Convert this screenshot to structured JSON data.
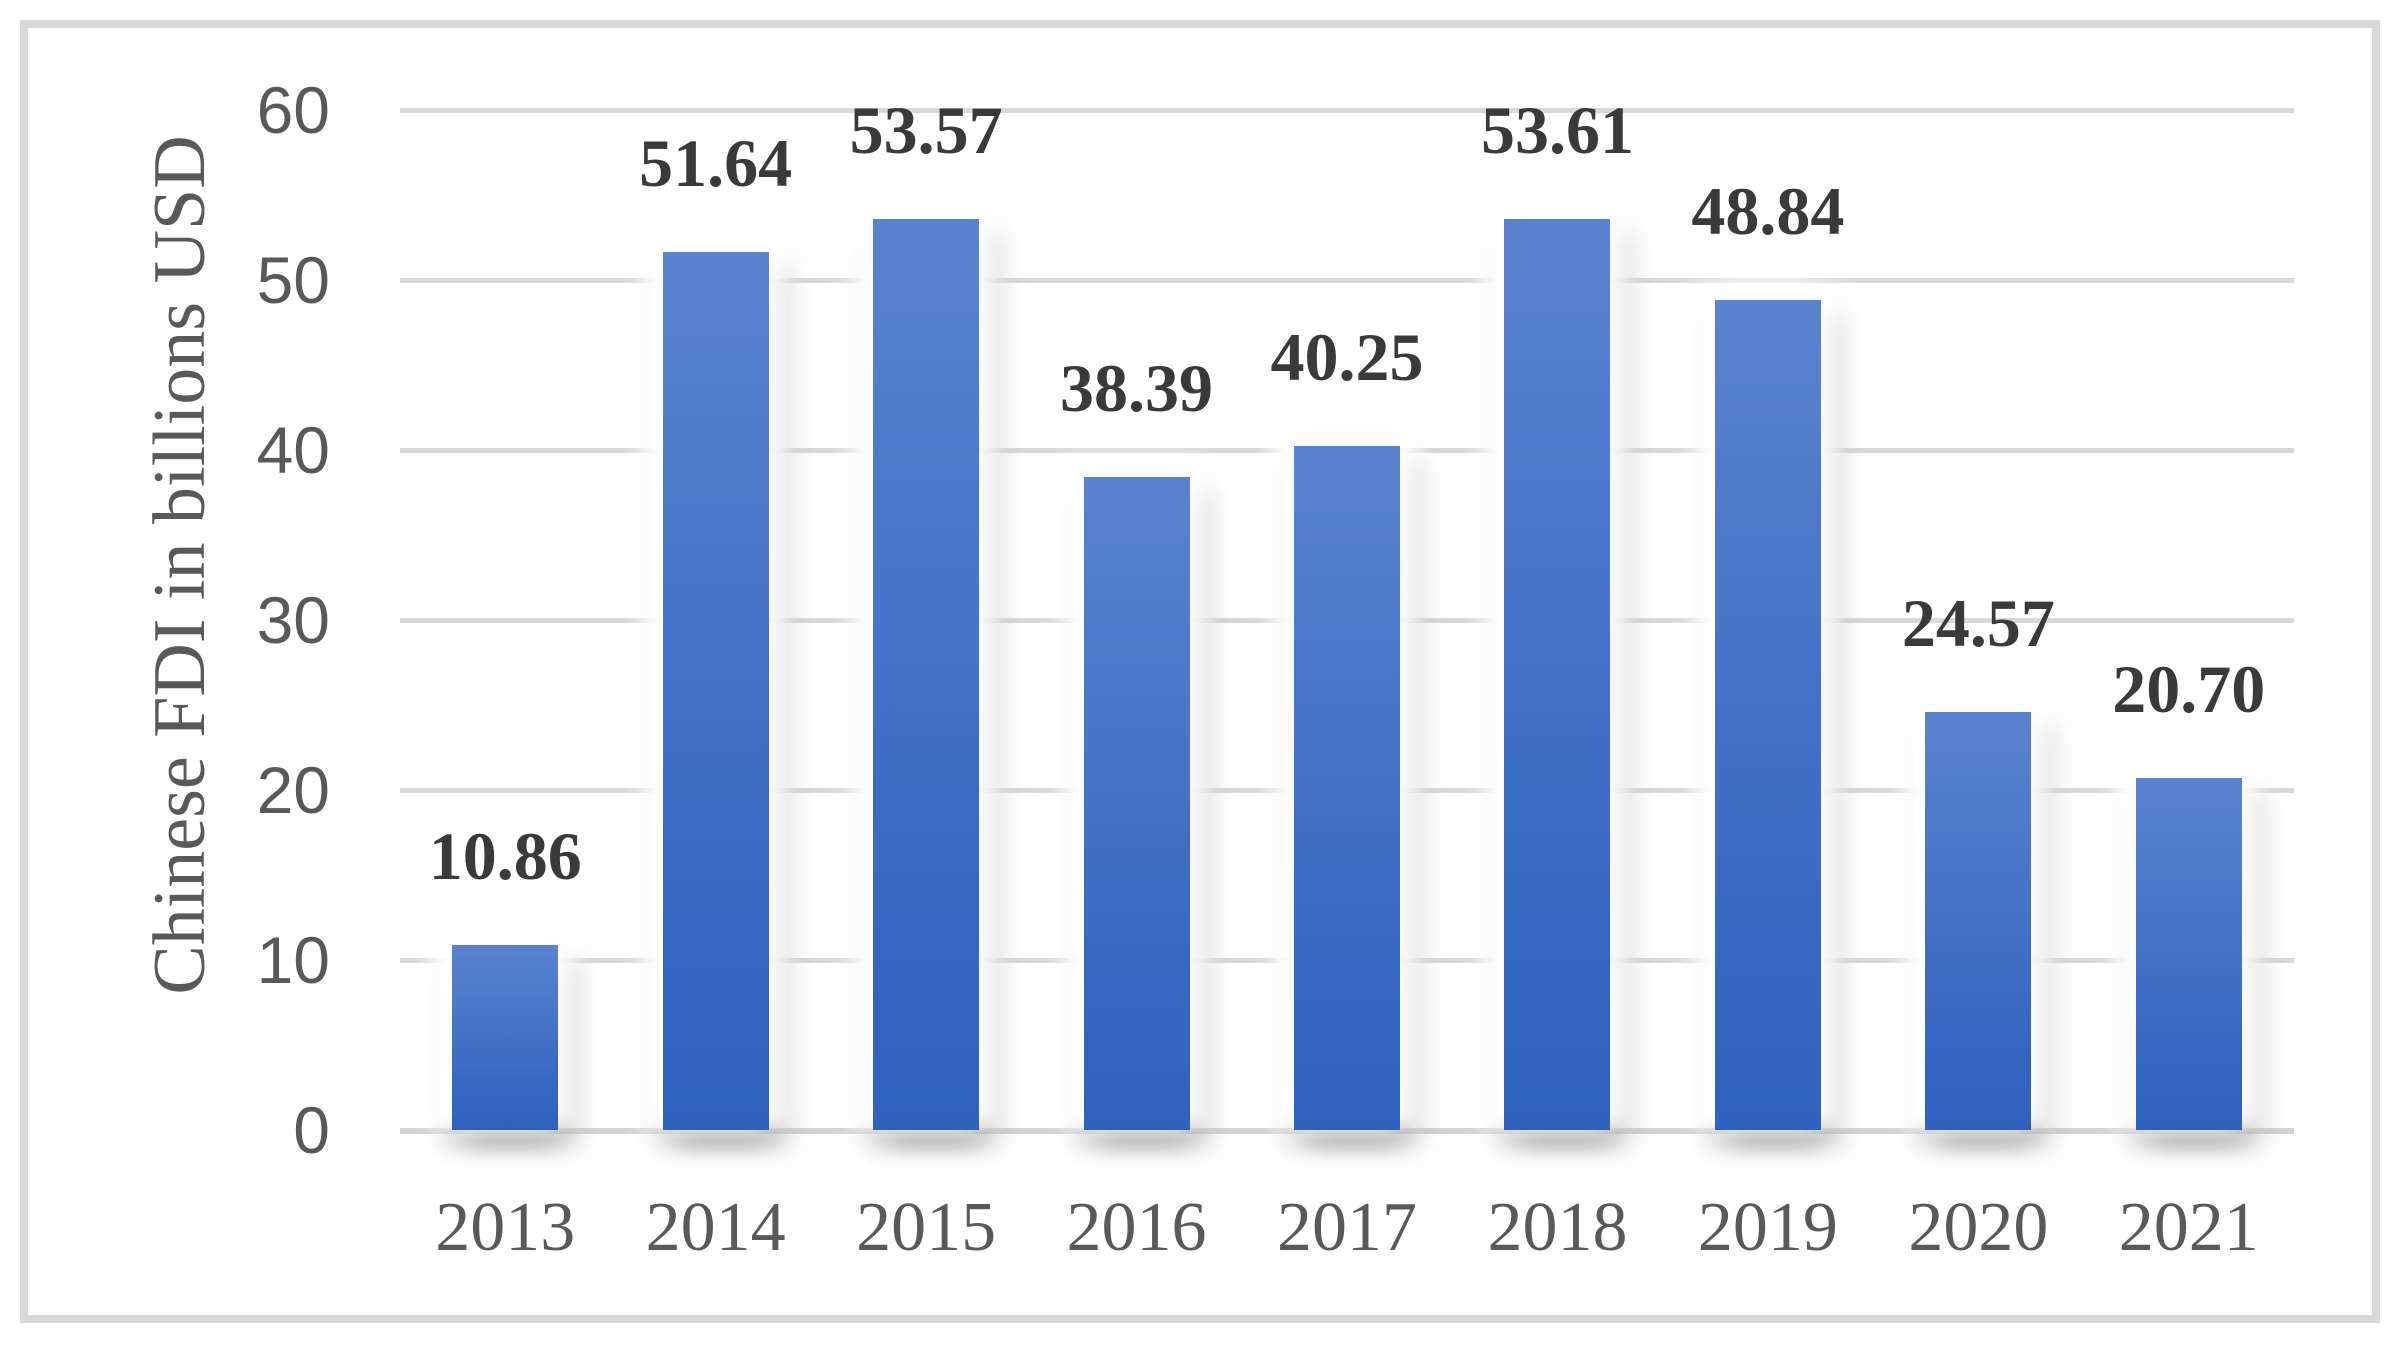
{
  "chart_data": {
    "type": "bar",
    "title": "",
    "xlabel": "",
    "ylabel": "Chinese FDI in billions USD",
    "categories": [
      "2013",
      "2014",
      "2015",
      "2016",
      "2017",
      "2018",
      "2019",
      "2020",
      "2021"
    ],
    "values": [
      10.86,
      51.64,
      53.57,
      38.39,
      40.25,
      53.61,
      48.84,
      24.57,
      20.7
    ],
    "value_labels": [
      "10.86",
      "51.64",
      "53.57",
      "38.39",
      "40.25",
      "53.61",
      "48.84",
      "24.57",
      "20.70"
    ],
    "ylim": [
      0,
      60
    ],
    "ytick_step": 10,
    "ytick_labels": [
      "0",
      "10",
      "20",
      "30",
      "40",
      "50",
      "60"
    ],
    "grid": true,
    "legend_position": "none"
  },
  "colors": {
    "bar_top": "#5A83CF",
    "bar_bottom": "#2F62BE",
    "gridline": "#D9D9D9",
    "axis_line": "#D4D4D4",
    "border": "#D9D9D9",
    "tick_text": "#595959",
    "data_label_text": "#3A3A3A"
  }
}
